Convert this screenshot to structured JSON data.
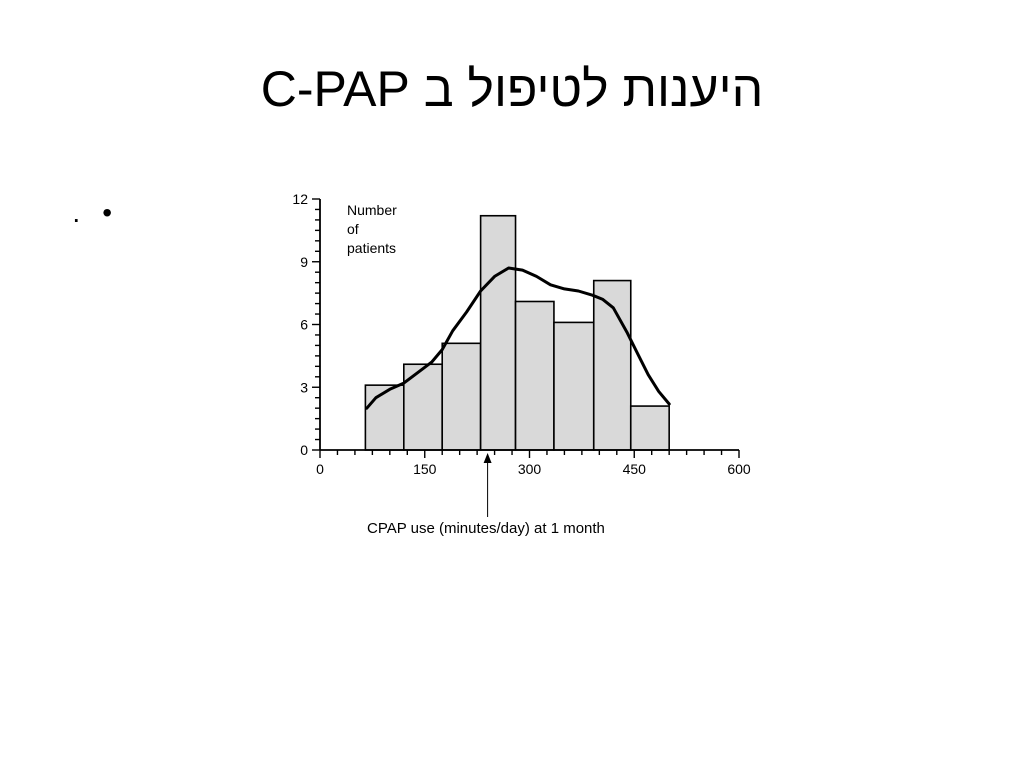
{
  "slide": {
    "title": "היענות לטיפול ב C-PAP",
    "bullet_text": "."
  },
  "chart_data": {
    "type": "bar",
    "title": "",
    "xlabel": "CPAP use (minutes/day) at 1 month",
    "ylabel": "Number\nof\npatients",
    "xlim": [
      0,
      600
    ],
    "ylim": [
      0,
      12
    ],
    "x_ticks": [
      0,
      150,
      300,
      450,
      600
    ],
    "y_ticks": [
      0,
      3,
      6,
      9,
      12
    ],
    "grid": false,
    "legend": "none",
    "bins": [
      {
        "start": 65,
        "end": 120,
        "value": 3.1
      },
      {
        "start": 120,
        "end": 175,
        "value": 4.1
      },
      {
        "start": 175,
        "end": 230,
        "value": 5.1
      },
      {
        "start": 230,
        "end": 280,
        "value": 11.2
      },
      {
        "start": 280,
        "end": 335,
        "value": 7.1
      },
      {
        "start": 335,
        "end": 392,
        "value": 6.1
      },
      {
        "start": 392,
        "end": 445,
        "value": 8.1
      },
      {
        "start": 445,
        "end": 500,
        "value": 2.1
      }
    ],
    "density_curve": {
      "x": [
        67,
        80,
        100,
        120,
        140,
        160,
        175,
        190,
        210,
        230,
        250,
        270,
        290,
        310,
        330,
        350,
        370,
        390,
        405,
        420,
        440,
        455,
        470,
        485,
        500
      ],
      "y": [
        2.0,
        2.5,
        2.9,
        3.2,
        3.7,
        4.2,
        4.8,
        5.7,
        6.6,
        7.6,
        8.3,
        8.7,
        8.6,
        8.3,
        7.9,
        7.7,
        7.6,
        7.4,
        7.2,
        6.8,
        5.6,
        4.6,
        3.6,
        2.8,
        2.2
      ]
    },
    "marker": {
      "x": 240
    },
    "colors": {
      "bar_fill": "#d9d9d9",
      "stroke": "#000000",
      "background": "#ffffff"
    }
  }
}
